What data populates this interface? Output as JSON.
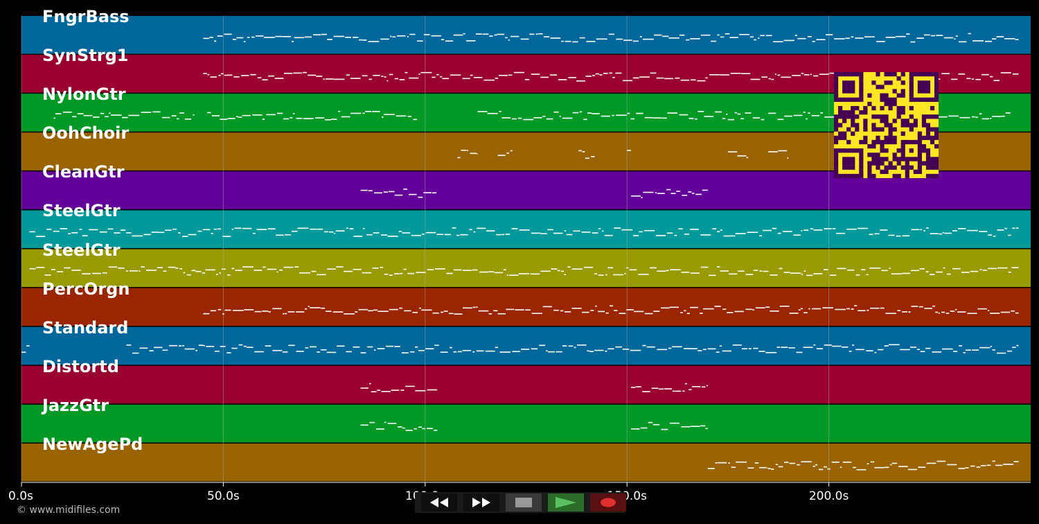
{
  "app": {
    "copyright": "© www.midifiles.com"
  },
  "colors": {
    "background": "#000000",
    "note": "#ffffff",
    "gridline": "#b0b0b0",
    "qr_dark": "#440154",
    "qr_light": "#fde725"
  },
  "timeline": {
    "max_seconds": 250,
    "ticks": [
      {
        "seconds": 0,
        "label": "0.0s"
      },
      {
        "seconds": 50,
        "label": "50.0s"
      },
      {
        "seconds": 100,
        "label": "100.0s"
      },
      {
        "seconds": 150,
        "label": "150.0s"
      },
      {
        "seconds": 200,
        "label": "200.0s"
      }
    ]
  },
  "tracks": [
    {
      "name": "FngrBass",
      "color": "#00679a",
      "notes": [
        [
          45,
          247
        ]
      ]
    },
    {
      "name": "SynStrg1",
      "color": "#99002f",
      "notes": [
        [
          45,
          247
        ]
      ]
    },
    {
      "name": "NylonGtr",
      "color": "#009926",
      "notes": [
        [
          8,
          43
        ],
        [
          46,
          98
        ],
        [
          113,
          150
        ],
        [
          150,
          184
        ],
        [
          185,
          245
        ]
      ]
    },
    {
      "name": "OohChoir",
      "color": "#996300",
      "notes": [
        [
          108,
          113
        ],
        [
          118,
          122
        ],
        [
          138,
          142
        ],
        [
          150,
          151
        ],
        [
          175,
          180
        ],
        [
          185,
          190
        ]
      ]
    },
    {
      "name": "CleanGtr",
      "color": "#630099",
      "notes": [
        [
          84,
          103
        ],
        [
          151,
          170
        ]
      ]
    },
    {
      "name": "SteelGtr",
      "color": "#009999",
      "notes": [
        [
          2,
          247
        ]
      ]
    },
    {
      "name": "SteelGtr",
      "color": "#999900",
      "notes": [
        [
          2,
          247
        ]
      ]
    },
    {
      "name": "PercOrgn",
      "color": "#992600",
      "notes": [
        [
          45,
          247
        ]
      ]
    },
    {
      "name": "Standard",
      "color": "#00679a",
      "notes": [
        [
          0,
          2
        ],
        [
          26,
          45
        ],
        [
          45,
          247
        ]
      ]
    },
    {
      "name": "Distortd",
      "color": "#99002f",
      "notes": [
        [
          84,
          103
        ],
        [
          151,
          170
        ]
      ]
    },
    {
      "name": "JazzGtr",
      "color": "#009926",
      "notes": [
        [
          84,
          103
        ],
        [
          151,
          170
        ]
      ]
    },
    {
      "name": "NewAgePd",
      "color": "#996300",
      "notes": [
        [
          170,
          247
        ]
      ]
    }
  ],
  "transport": {
    "buttons": [
      {
        "name": "rewind-button",
        "icon": "rewind-icon",
        "bg": "#0f0f0f"
      },
      {
        "name": "fast-forward-button",
        "icon": "fast-forward-icon",
        "bg": "#0f0f0f"
      },
      {
        "name": "stop-button",
        "icon": "stop-icon",
        "bg": "#3a3a3a"
      },
      {
        "name": "play-button",
        "icon": "play-icon",
        "bg": "#2a6e2a"
      },
      {
        "name": "record-button",
        "icon": "record-icon",
        "bg": "#5a1010"
      }
    ]
  }
}
